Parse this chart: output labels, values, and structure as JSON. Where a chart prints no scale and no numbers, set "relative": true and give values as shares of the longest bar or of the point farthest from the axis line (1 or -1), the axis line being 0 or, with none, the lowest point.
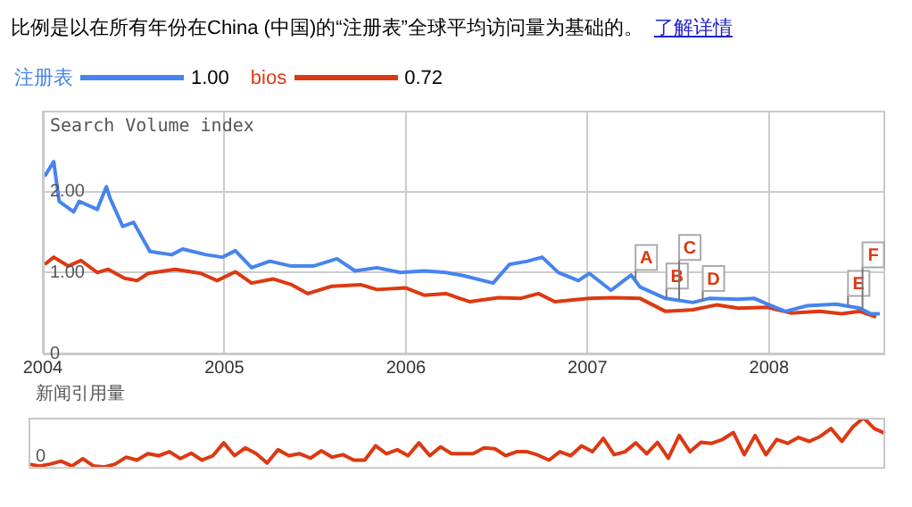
{
  "chart_data": [
    {
      "type": "line",
      "title": "比例是以在所有年份在China (中国)的“注册表”全球平均访问量为基础的。",
      "subtitle": "了解详情",
      "ylabel": "Search Volume index",
      "legend": "top left",
      "grid": true,
      "xlim": [
        2004.0,
        2008.64
      ],
      "ylim": [
        0,
        3
      ],
      "xticks": [
        2004,
        2005,
        2006,
        2007,
        2008
      ],
      "yticks": [
        0,
        {
          "value": 1,
          "label": "1.00"
        },
        {
          "value": 2,
          "label": "2.00"
        }
      ],
      "series": [
        {
          "name": "注册表",
          "color": "#4684ee",
          "x": [
            2004.01,
            2004.06,
            2004.09,
            2004.17,
            2004.2,
            2004.3,
            2004.35,
            2004.37,
            2004.44,
            2004.5,
            2004.59,
            2004.71,
            2004.77,
            2004.9,
            2004.99,
            2005.06,
            2005.15,
            2005.25,
            2005.37,
            2005.49,
            2005.62,
            2005.72,
            2005.84,
            2005.97,
            2006.1,
            2006.22,
            2006.32,
            2006.48,
            2006.57,
            2006.67,
            2006.75,
            2006.84,
            2006.95,
            2007.01,
            2007.13,
            2007.24,
            2007.29,
            2007.43,
            2007.58,
            2007.67,
            2007.83,
            2007.92,
            2007.99,
            2008.09,
            2008.21,
            2008.37,
            2008.5,
            2008.56,
            2008.61
          ],
          "values": [
            2.19,
            2.37,
            1.88,
            1.75,
            1.88,
            1.78,
            2.06,
            1.92,
            1.57,
            1.62,
            1.26,
            1.22,
            1.29,
            1.22,
            1.19,
            1.27,
            1.06,
            1.14,
            1.08,
            1.08,
            1.17,
            1.02,
            1.06,
            1.0,
            1.02,
            1.0,
            0.96,
            0.87,
            1.1,
            1.14,
            1.19,
            1.0,
            0.9,
            0.99,
            0.78,
            0.97,
            0.82,
            0.68,
            0.63,
            0.68,
            0.67,
            0.68,
            0.61,
            0.52,
            0.59,
            0.61,
            0.56,
            0.49,
            0.49
          ]
        },
        {
          "name": "bios",
          "color": "#dc3912",
          "x": [
            2004.01,
            2004.06,
            2004.14,
            2004.21,
            2004.3,
            2004.36,
            2004.45,
            2004.52,
            2004.58,
            2004.73,
            2004.87,
            2004.96,
            2005.06,
            2005.15,
            2005.27,
            2005.37,
            2005.46,
            2005.59,
            2005.75,
            2005.84,
            2006.0,
            2006.1,
            2006.22,
            2006.35,
            2006.51,
            2006.63,
            2006.73,
            2006.82,
            2007.01,
            2007.14,
            2007.29,
            2007.43,
            2007.58,
            2007.71,
            2007.83,
            2007.99,
            2008.12,
            2008.28,
            2008.4,
            2008.5,
            2008.59
          ],
          "values": [
            1.1,
            1.19,
            1.08,
            1.15,
            1.0,
            1.04,
            0.93,
            0.9,
            0.99,
            1.04,
            0.99,
            0.9,
            1.01,
            0.87,
            0.92,
            0.85,
            0.74,
            0.83,
            0.85,
            0.79,
            0.81,
            0.72,
            0.74,
            0.64,
            0.69,
            0.68,
            0.74,
            0.64,
            0.68,
            0.69,
            0.68,
            0.52,
            0.54,
            0.6,
            0.56,
            0.57,
            0.5,
            0.52,
            0.49,
            0.52,
            0.45
          ]
        }
      ],
      "annotations": [
        "1.00",
        "0.72",
        {
          "text": "A",
          "x": 2007.26,
          "y": 0.91
        },
        {
          "text": "B",
          "x": 2007.43,
          "y": 0.68
        },
        {
          "text": "C",
          "x": 2007.5,
          "y": 0.66
        },
        {
          "text": "D",
          "x": 2007.63,
          "y": 0.65
        },
        {
          "text": "E",
          "x": 2008.43,
          "y": 0.59
        },
        {
          "text": "F",
          "x": 2008.51,
          "y": 0.55
        }
      ]
    },
    {
      "type": "line",
      "ylabel": "新闻引用量",
      "relative": true,
      "categories": [
        null,
        null,
        null,
        null,
        null,
        null,
        null,
        null,
        null,
        null,
        null,
        null,
        null,
        null,
        null,
        null,
        null,
        null,
        null,
        null,
        null,
        null,
        null,
        null,
        null,
        null,
        null,
        null,
        null,
        null,
        null,
        null,
        null,
        null,
        null,
        null,
        null,
        null,
        null,
        null,
        null,
        null,
        null,
        null,
        null,
        null,
        null,
        null,
        null,
        null,
        null,
        null,
        null,
        null,
        null,
        null,
        null,
        null,
        null,
        null,
        null,
        null,
        null,
        null,
        null,
        null,
        null,
        null,
        null,
        null,
        null,
        null,
        null,
        null,
        null,
        null,
        null,
        null,
        null,
        null
      ],
      "series": [
        {
          "color": "#dc3912",
          "values": [
            0.06,
            0.02,
            0.06,
            0.12,
            0.02,
            0.17,
            0.02,
            0,
            0.06,
            0.2,
            0.14,
            0.27,
            0.23,
            0.31,
            0.17,
            0.28,
            0.14,
            0.23,
            0.49,
            0.23,
            0.39,
            0.27,
            0.08,
            0.35,
            0.23,
            0.27,
            0.18,
            0.33,
            0.2,
            0.25,
            0.14,
            0.14,
            0.43,
            0.27,
            0.35,
            0.23,
            0.49,
            0.23,
            0.41,
            0.27,
            0.27,
            0.27,
            0.39,
            0.37,
            0.23,
            0.31,
            0.31,
            0.24,
            0.14,
            0.31,
            0.23,
            0.43,
            0.31,
            0.58,
            0.25,
            0.31,
            0.49,
            0.27,
            0.5,
            0.18,
            0.64,
            0.31,
            0.5,
            0.48,
            0.56,
            0.7,
            0.25,
            0.64,
            0.25,
            0.56,
            0.48,
            0.6,
            0.52,
            0.62,
            0.78,
            0.52,
            0.81,
            1,
            0.78,
            0.68
          ]
        }
      ],
      "annotations": [
        "0"
      ]
    }
  ]
}
